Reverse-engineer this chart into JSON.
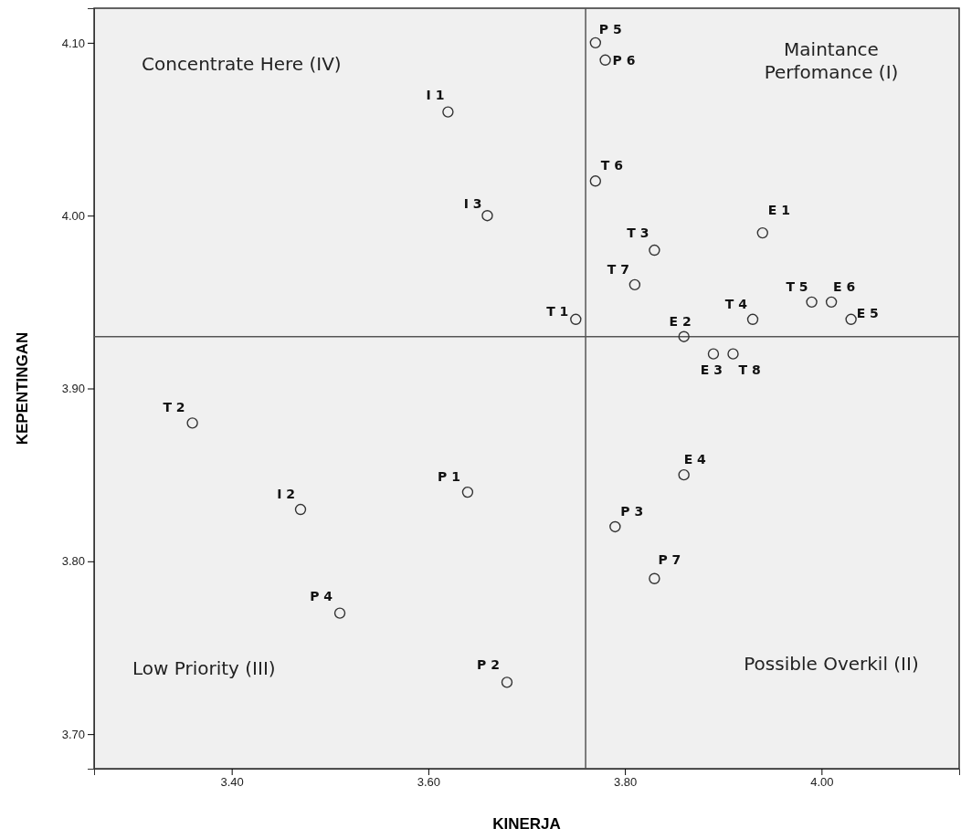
{
  "chart_data": {
    "type": "scatter",
    "xlabel": "KINERJA",
    "ylabel": "KEPENTINGAN",
    "x": [
      3.77,
      3.78,
      3.62,
      3.77,
      3.66,
      3.83,
      3.94,
      3.81,
      3.75,
      3.99,
      4.01,
      3.93,
      4.03,
      3.86,
      3.89,
      3.91,
      3.36,
      3.64,
      3.47,
      3.86,
      3.79,
      3.83,
      3.51,
      3.68
    ],
    "series": [
      {
        "color": "#333333",
        "values": [
          4.1,
          4.09,
          4.06,
          4.02,
          4.0,
          3.98,
          3.99,
          3.96,
          3.94,
          3.95,
          3.95,
          3.94,
          3.94,
          3.93,
          3.92,
          3.92,
          3.88,
          3.84,
          3.83,
          3.85,
          3.82,
          3.79,
          3.77,
          3.73
        ]
      }
    ],
    "marker": "circle",
    "grid": false,
    "xlim": [
      3.26,
      4.14
    ],
    "ylim": [
      3.68,
      4.12
    ],
    "xticks": [
      {
        "value": 3.4,
        "label": "3.40"
      },
      {
        "value": 3.6,
        "label": "3.60"
      },
      {
        "value": 3.8,
        "label": "3.80"
      },
      {
        "value": 4.0,
        "label": "4.00"
      }
    ],
    "yticks": [
      {
        "value": 3.7,
        "label": "3.70"
      },
      {
        "value": 3.8,
        "label": "3.80"
      },
      {
        "value": 3.9,
        "label": "3.90"
      },
      {
        "value": 4.0,
        "label": "4.00"
      },
      {
        "value": 4.1,
        "label": "4.10"
      }
    ],
    "ref_lines": [
      {
        "axis": "x",
        "value": 3.76,
        "color": "#555555"
      },
      {
        "axis": "y",
        "value": 3.93,
        "color": "#555555"
      }
    ],
    "annotations": [
      {
        "text": "P 5",
        "x": 3.77,
        "y": 4.1
      },
      {
        "text": "P 6",
        "x": 3.78,
        "y": 4.09
      },
      {
        "text": "I 1",
        "x": 3.62,
        "y": 4.06
      },
      {
        "text": "T 6",
        "x": 3.77,
        "y": 4.02
      },
      {
        "text": "I 3",
        "x": 3.66,
        "y": 4.0
      },
      {
        "text": "T 3",
        "x": 3.83,
        "y": 3.98
      },
      {
        "text": "E 1",
        "x": 3.94,
        "y": 3.99
      },
      {
        "text": "T 7",
        "x": 3.81,
        "y": 3.96
      },
      {
        "text": "T 1",
        "x": 3.75,
        "y": 3.94
      },
      {
        "text": "T 5",
        "x": 3.99,
        "y": 3.95
      },
      {
        "text": "E 6",
        "x": 4.01,
        "y": 3.95
      },
      {
        "text": "T 4",
        "x": 3.93,
        "y": 3.94
      },
      {
        "text": "E 5",
        "x": 4.03,
        "y": 3.94
      },
      {
        "text": "E 2",
        "x": 3.86,
        "y": 3.93
      },
      {
        "text": "E 3",
        "x": 3.89,
        "y": 3.92
      },
      {
        "text": "T 8",
        "x": 3.91,
        "y": 3.92
      },
      {
        "text": "T 2",
        "x": 3.36,
        "y": 3.88
      },
      {
        "text": "P 1",
        "x": 3.64,
        "y": 3.84
      },
      {
        "text": "I 2",
        "x": 3.47,
        "y": 3.83
      },
      {
        "text": "E 4",
        "x": 3.86,
        "y": 3.85
      },
      {
        "text": "P 3",
        "x": 3.79,
        "y": 3.82
      },
      {
        "text": "P 7",
        "x": 3.83,
        "y": 3.79
      },
      {
        "text": "P 4",
        "x": 3.51,
        "y": 3.77
      },
      {
        "text": "P 2",
        "x": 3.68,
        "y": 3.73
      },
      "Concentrate Here (IV)",
      "Maintance Perfomance (I)",
      "Low Priority (III)",
      "Possible Overkil (II)"
    ]
  }
}
